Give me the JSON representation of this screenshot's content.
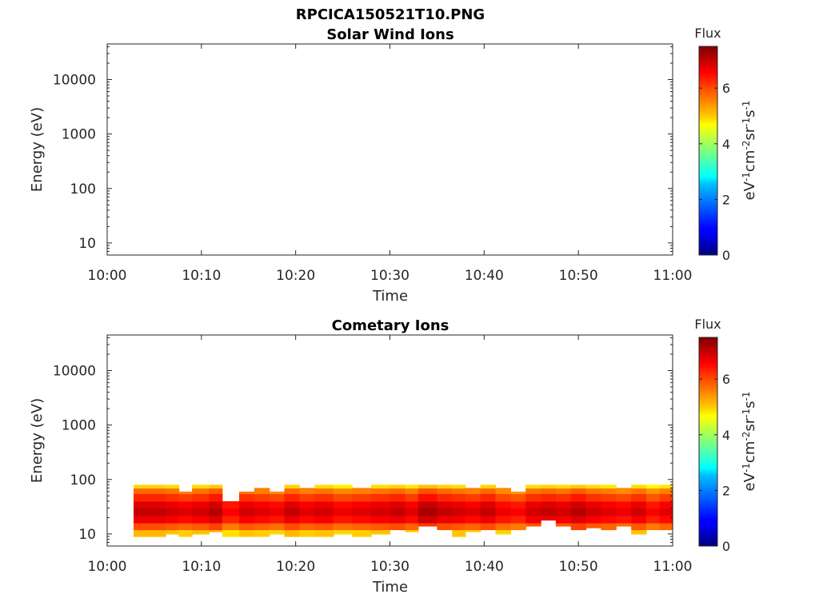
{
  "figure": {
    "file_title": "RPCICA150521T10.PNG"
  },
  "chart_data": [
    {
      "type": "heatmap",
      "title": "Solar Wind Ions",
      "xlabel": "Time",
      "ylabel": "Energy (eV)",
      "x_ticks": [
        "10:00",
        "10:10",
        "10:20",
        "10:30",
        "10:40",
        "10:50",
        "11:00"
      ],
      "x_range": [
        "10:00",
        "11:00"
      ],
      "y_scale": "log",
      "y_ticks": [
        "10",
        "100",
        "1000",
        "10000"
      ],
      "y_range": [
        6,
        45000
      ],
      "colorbar": {
        "label_top": "Flux",
        "unit": "eV-1cm-2sr-1s-1",
        "range": [
          0,
          7.5
        ],
        "ticks": [
          "0",
          "2",
          "4",
          "6"
        ],
        "colormap": "jet"
      },
      "cells": []
    },
    {
      "type": "heatmap",
      "title": "Cometary Ions",
      "xlabel": "Time",
      "ylabel": "Energy (eV)",
      "x_ticks": [
        "10:00",
        "10:10",
        "10:20",
        "10:30",
        "10:40",
        "10:50",
        "11:00"
      ],
      "x_range": [
        "10:00",
        "11:00"
      ],
      "y_scale": "log",
      "y_ticks": [
        "10",
        "100",
        "1000",
        "10000"
      ],
      "y_range": [
        6,
        45000
      ],
      "colorbar": {
        "label_top": "Flux",
        "unit": "eV-1cm-2sr-1s-1",
        "range": [
          0,
          7.5
        ],
        "ticks": [
          "0",
          "2",
          "4",
          "6"
        ],
        "colormap": "jet"
      },
      "energy_bands": [
        {
          "energy_low": 9,
          "energy_high": 12,
          "flux": 5.2
        },
        {
          "energy_low": 12,
          "energy_high": 16,
          "flux": 6.0
        },
        {
          "energy_low": 16,
          "energy_high": 22,
          "flux": 6.7
        },
        {
          "energy_low": 22,
          "energy_high": 30,
          "flux": 7.0
        },
        {
          "energy_low": 30,
          "energy_high": 40,
          "flux": 6.8
        },
        {
          "energy_low": 40,
          "energy_high": 55,
          "flux": 6.3
        },
        {
          "energy_low": 55,
          "energy_high": 70,
          "flux": 5.8
        },
        {
          "energy_low": 70,
          "energy_high": 85,
          "flux": 5.0
        }
      ],
      "time_columns": [
        {
          "t_start": "10:02.8",
          "t_end": "10:06.2",
          "e_min": 9,
          "e_max": 80,
          "peak": 7.0
        },
        {
          "t_start": "10:06.2",
          "t_end": "10:07.6",
          "e_min": 10,
          "e_max": 80,
          "peak": 6.9
        },
        {
          "t_start": "10:07.6",
          "t_end": "10:09.0",
          "e_min": 9,
          "e_max": 60,
          "peak": 6.8
        },
        {
          "t_start": "10:09.0",
          "t_end": "10:10.8",
          "e_min": 10,
          "e_max": 80,
          "peak": 6.9
        },
        {
          "t_start": "10:10.8",
          "t_end": "10:12.2",
          "e_min": 11,
          "e_max": 80,
          "peak": 7.1
        },
        {
          "t_start": "10:12.2",
          "t_end": "10:14.0",
          "e_min": 9,
          "e_max": 40,
          "peak": 6.6
        },
        {
          "t_start": "10:14.0",
          "t_end": "10:15.6",
          "e_min": 7,
          "e_max": 60,
          "peak": 6.9
        },
        {
          "t_start": "10:15.6",
          "t_end": "10:17.2",
          "e_min": 9,
          "e_max": 70,
          "peak": 6.8
        },
        {
          "t_start": "10:17.2",
          "t_end": "10:18.8",
          "e_min": 10,
          "e_max": 60,
          "peak": 6.7
        },
        {
          "t_start": "10:18.8",
          "t_end": "10:20.4",
          "e_min": 9,
          "e_max": 80,
          "peak": 7.0
        },
        {
          "t_start": "10:20.4",
          "t_end": "10:22.0",
          "e_min": 7,
          "e_max": 70,
          "peak": 6.8
        },
        {
          "t_start": "10:22.0",
          "t_end": "10:24.0",
          "e_min": 9,
          "e_max": 80,
          "peak": 6.9
        },
        {
          "t_start": "10:24.0",
          "t_end": "10:26.0",
          "e_min": 10,
          "e_max": 80,
          "peak": 6.7
        },
        {
          "t_start": "10:26.0",
          "t_end": "10:28.0",
          "e_min": 9,
          "e_max": 70,
          "peak": 6.8
        },
        {
          "t_start": "10:28.0",
          "t_end": "10:30.0",
          "e_min": 10,
          "e_max": 80,
          "peak": 6.9
        },
        {
          "t_start": "10:30.0",
          "t_end": "10:31.6",
          "e_min": 12,
          "e_max": 80,
          "peak": 7.0
        },
        {
          "t_start": "10:31.6",
          "t_end": "10:33.0",
          "e_min": 11,
          "e_max": 80,
          "peak": 6.8
        },
        {
          "t_start": "10:33.0",
          "t_end": "10:35.0",
          "e_min": 14,
          "e_max": 80,
          "peak": 7.2
        },
        {
          "t_start": "10:35.0",
          "t_end": "10:36.6",
          "e_min": 12,
          "e_max": 80,
          "peak": 7.0
        },
        {
          "t_start": "10:36.6",
          "t_end": "10:38.0",
          "e_min": 9,
          "e_max": 80,
          "peak": 6.9
        },
        {
          "t_start": "10:38.0",
          "t_end": "10:39.6",
          "e_min": 11,
          "e_max": 70,
          "peak": 6.8
        },
        {
          "t_start": "10:39.6",
          "t_end": "10:41.2",
          "e_min": 12,
          "e_max": 80,
          "peak": 7.0
        },
        {
          "t_start": "10:41.2",
          "t_end": "10:42.8",
          "e_min": 10,
          "e_max": 70,
          "peak": 6.7
        },
        {
          "t_start": "10:42.8",
          "t_end": "10:44.4",
          "e_min": 12,
          "e_max": 60,
          "peak": 6.6
        },
        {
          "t_start": "10:44.4",
          "t_end": "10:46.0",
          "e_min": 14,
          "e_max": 80,
          "peak": 6.9
        },
        {
          "t_start": "10:46.0",
          "t_end": "10:47.6",
          "e_min": 18,
          "e_max": 80,
          "peak": 7.0
        },
        {
          "t_start": "10:47.6",
          "t_end": "10:49.2",
          "e_min": 14,
          "e_max": 80,
          "peak": 6.9
        },
        {
          "t_start": "10:49.2",
          "t_end": "10:50.8",
          "e_min": 12,
          "e_max": 80,
          "peak": 7.1
        },
        {
          "t_start": "10:50.8",
          "t_end": "10:52.4",
          "e_min": 13,
          "e_max": 80,
          "peak": 6.9
        },
        {
          "t_start": "10:52.4",
          "t_end": "10:54.0",
          "e_min": 12,
          "e_max": 80,
          "peak": 6.8
        },
        {
          "t_start": "10:54.0",
          "t_end": "10:55.6",
          "e_min": 14,
          "e_max": 70,
          "peak": 6.7
        },
        {
          "t_start": "10:55.6",
          "t_end": "10:57.2",
          "e_min": 10,
          "e_max": 80,
          "peak": 6.9
        },
        {
          "t_start": "10:57.2",
          "t_end": "10:58.6",
          "e_min": 12,
          "e_max": 80,
          "peak": 6.6
        },
        {
          "t_start": "10:58.6",
          "t_end": "11:00.0",
          "e_min": 12,
          "e_max": 80,
          "peak": 6.8
        }
      ]
    }
  ]
}
